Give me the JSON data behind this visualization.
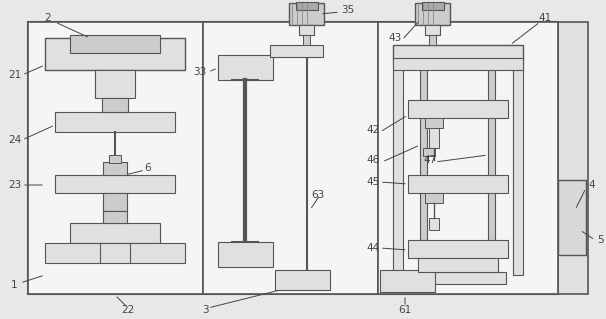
{
  "bg_color": "#e8e8e8",
  "line_color": "#555555",
  "label_color": "#444444",
  "fill_light": "#e0e0e0",
  "fill_mid": "#cccccc",
  "fill_dark": "#aaaaaa",
  "fill_white": "#f5f5f5"
}
